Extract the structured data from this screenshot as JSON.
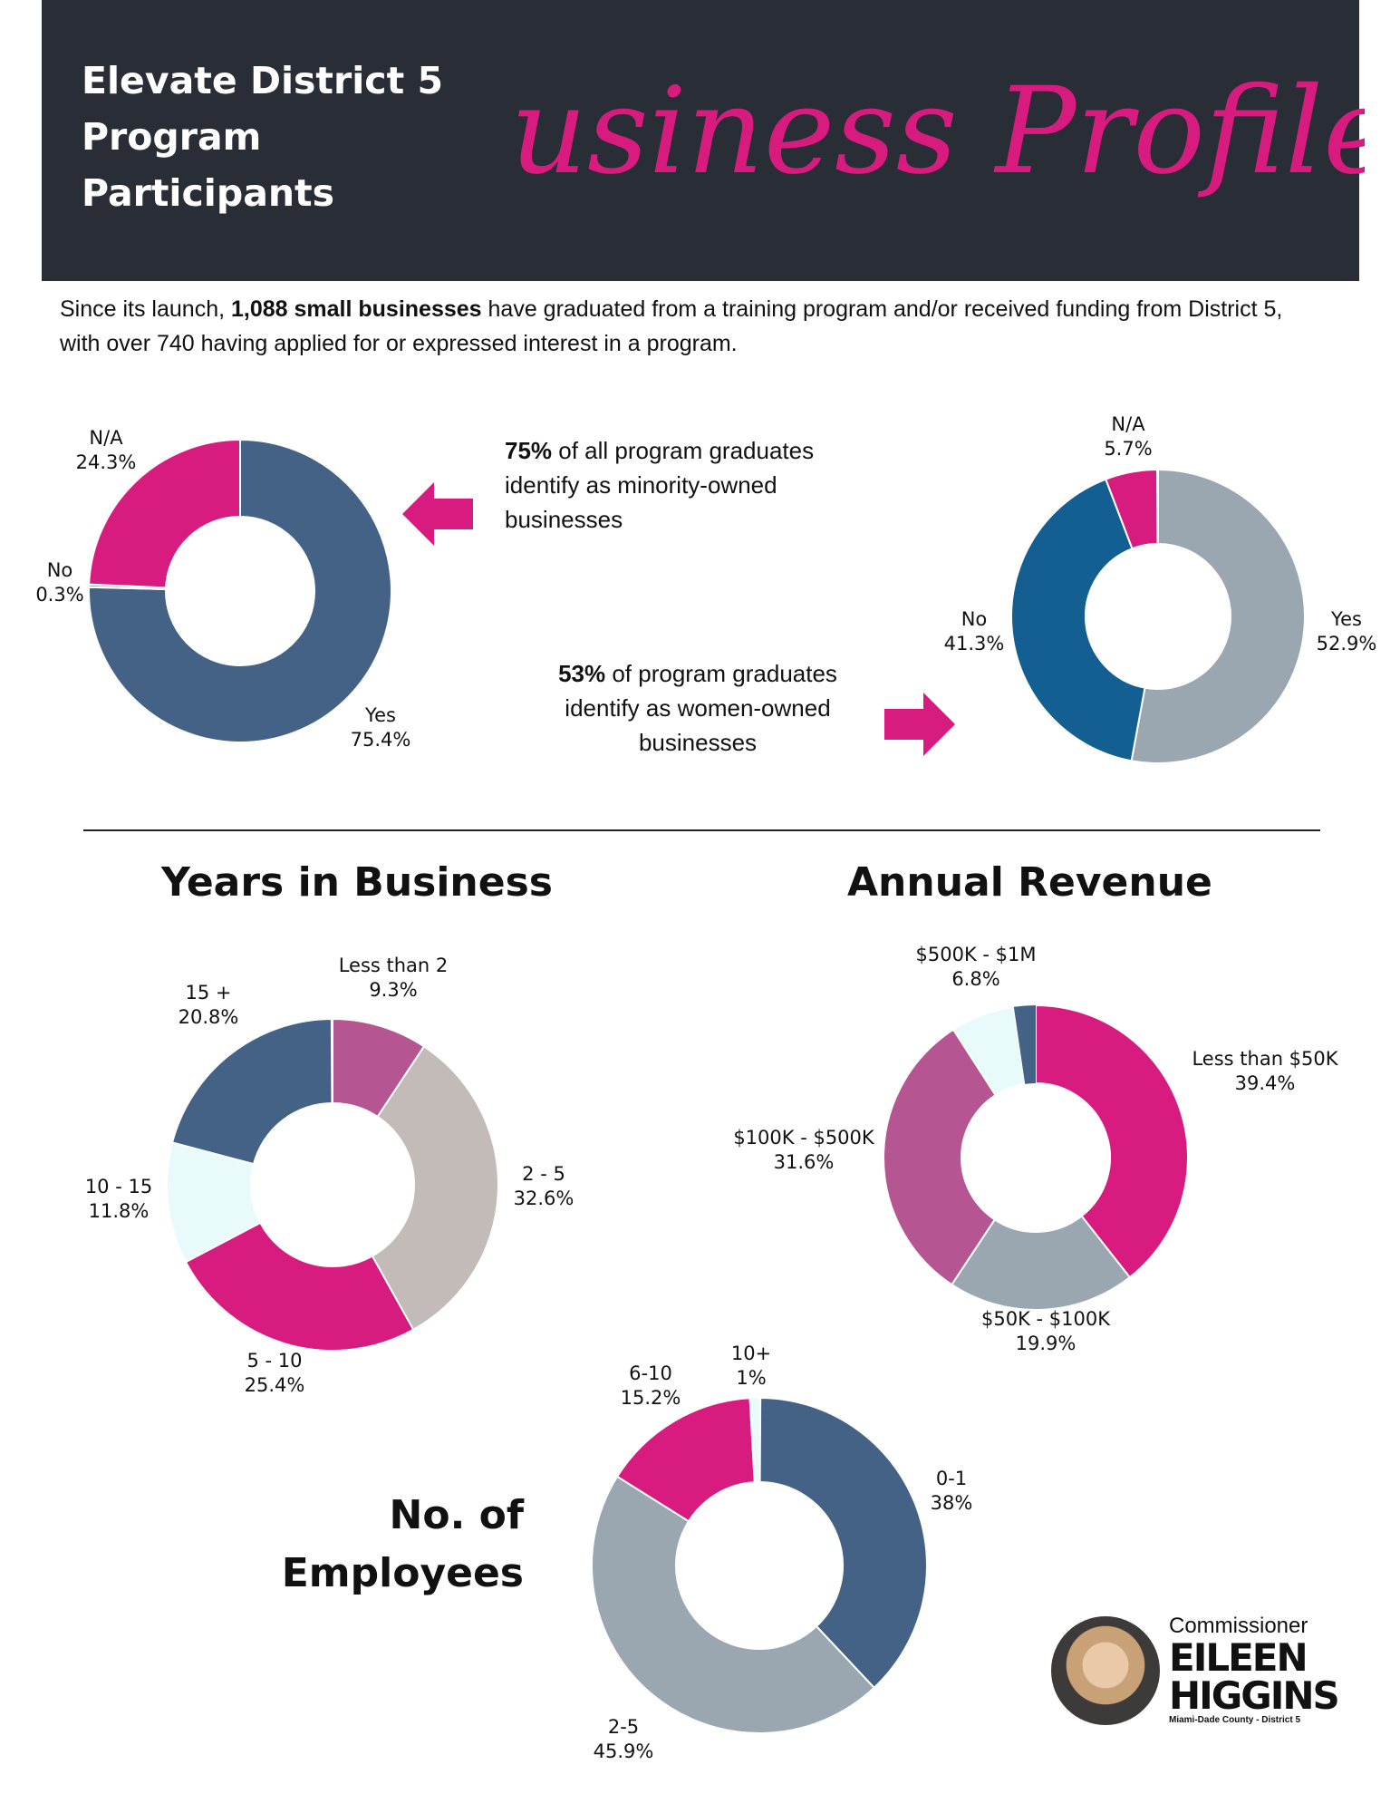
{
  "header": {
    "title_line1": "Elevate District 5",
    "title_line2": "Program",
    "title_line3": "Participants",
    "script_title": "Business Profiles"
  },
  "intro": {
    "prefix": "Since its launch, ",
    "bold": "1,088 small businesses",
    "suffix": " have graduated from a training program and/or received funding from District 5, with over 740 having applied for or expressed interest in a program."
  },
  "callouts": {
    "minority_bold": "75%",
    "minority_rest": " of all program graduates identify as minority-owned businesses",
    "women_bold": "53%",
    "women_rest": " of program graduates identify as women-owned businesses"
  },
  "titles": {
    "years": "Years in Business",
    "revenue": "Annual Revenue",
    "employees_line1": "No. of",
    "employees_line2": "Employees"
  },
  "logo": {
    "small": "Commissioner",
    "name_line1": "EILEEN",
    "name_line2": "HIGGINS",
    "footer": "Miami-Dade County - District 5"
  },
  "colors": {
    "header_bg": "#282d36",
    "pink": "#d81b7f",
    "slate_blue": "#446285",
    "deep_blue": "#135f92",
    "gray_blue": "#9aa7b1",
    "taupe": "#c3bbb7",
    "mauve": "#b55592",
    "ice": "#e8fafa"
  },
  "chart_data": [
    {
      "id": "minority",
      "type": "pie",
      "subtype": "donut",
      "title": "Minority-owned",
      "categories": [
        "Yes",
        "No",
        "N/A"
      ],
      "values": [
        75.4,
        0.3,
        24.3
      ],
      "labels": [
        "75.4%",
        "0.3%",
        "24.3%"
      ],
      "colors": [
        "#446285",
        "#9aa7b1",
        "#d81b7f"
      ]
    },
    {
      "id": "women",
      "type": "pie",
      "subtype": "donut",
      "title": "Women-owned",
      "categories": [
        "Yes",
        "No",
        "N/A"
      ],
      "values": [
        52.9,
        41.3,
        5.7
      ],
      "labels": [
        "52.9%",
        "41.3%",
        "5.7%"
      ],
      "colors": [
        "#9aa7b1",
        "#135f92",
        "#d81b7f"
      ]
    },
    {
      "id": "years",
      "type": "pie",
      "subtype": "donut",
      "title": "Years in Business",
      "categories": [
        "Less than 2",
        "2 - 5",
        "5 - 10",
        "10 - 15",
        "15 +"
      ],
      "values": [
        9.3,
        32.6,
        25.4,
        11.8,
        20.8
      ],
      "labels": [
        "9.3%",
        "32.6%",
        "25.4%",
        "11.8%",
        "20.8%"
      ],
      "colors": [
        "#b55592",
        "#c3bbb7",
        "#d81b7f",
        "#e8fafa",
        "#446285"
      ]
    },
    {
      "id": "revenue",
      "type": "pie",
      "subtype": "donut",
      "title": "Annual Revenue",
      "categories": [
        "Less than $50K",
        "$50K - $100K",
        "$100K - $500K",
        "$500K - $1M"
      ],
      "values": [
        39.4,
        19.9,
        31.6,
        6.8
      ],
      "labels": [
        "39.4%",
        "19.9%",
        "31.6%",
        "6.8%"
      ],
      "colors": [
        "#d81b7f",
        "#9aa7b1",
        "#b55592",
        "#e8fafa"
      ],
      "residual_color": "#446285"
    },
    {
      "id": "employees",
      "type": "pie",
      "subtype": "donut",
      "title": "No. of Employees",
      "categories": [
        "0-1",
        "2-5",
        "6-10",
        "10+"
      ],
      "values": [
        38,
        45.9,
        15.2,
        1
      ],
      "labels": [
        "38%",
        "45.9%",
        "15.2%",
        "1%"
      ],
      "colors": [
        "#446285",
        "#9aa7b1",
        "#d81b7f",
        "#e8fafa"
      ]
    }
  ]
}
